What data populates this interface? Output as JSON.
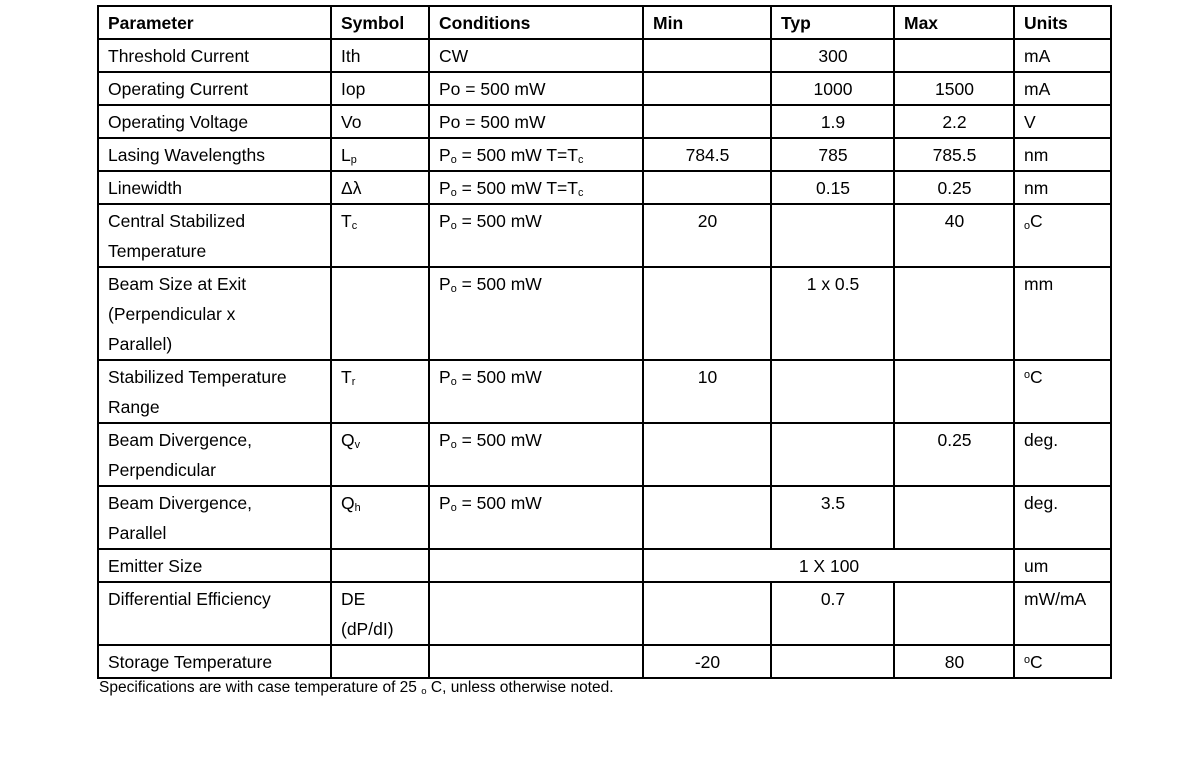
{
  "page": {
    "footnote": "Specifications are with case temperature of 25 _{o} C, unless otherwise noted."
  },
  "table": {
    "headers": [
      "Parameter",
      "Symbol",
      "Conditions",
      "Min",
      "Typ",
      "Max",
      "Units"
    ],
    "rows": [
      {
        "parameter": "Threshold Current",
        "symbol": "Ith",
        "conditions": "CW",
        "min": "",
        "typ": "300",
        "max": "",
        "units": "mA"
      },
      {
        "parameter": "Operating Current",
        "symbol": "Iop",
        "conditions": "Po = 500 mW",
        "min": "",
        "typ": "1000",
        "max": "1500",
        "units": "mA"
      },
      {
        "parameter": "Operating Voltage",
        "symbol": "Vo",
        "conditions": "Po = 500 mW",
        "min": "",
        "typ": "1.9",
        "max": "2.2",
        "units": "V"
      },
      {
        "parameter": "Lasing Wavelengths",
        "symbol": "L_{p}",
        "conditions": "P_{o} = 500 mW T=T_{c}",
        "min": "784.5",
        "typ": "785",
        "max": "785.5",
        "units": "nm"
      },
      {
        "parameter": "Linewidth",
        "symbol": "Δλ",
        "conditions": "P_{o} = 500 mW T=T_{c}",
        "min": "",
        "typ": "0.15",
        "max": "0.25",
        "units": "nm"
      },
      {
        "parameter": "Central Stabilized\nTemperature",
        "symbol": "T_{c}",
        "conditions": "P_{o} = 500 mW",
        "min": "20",
        "typ": "",
        "max": "40",
        "units": "_{o}C"
      },
      {
        "parameter": "Beam Size at Exit\n(Perpendicular x\nParallel)",
        "symbol": "",
        "conditions": "P_{o} = 500 mW",
        "min": "",
        "typ": "1 x 0.5",
        "max": "",
        "units": "mm"
      },
      {
        "parameter": "Stabilized Temperature\nRange",
        "symbol": "T_{r}",
        "conditions": "P_{o} = 500 mW",
        "min": "10",
        "typ": "",
        "max": "",
        "units": "^{o}C"
      },
      {
        "parameter": "Beam Divergence,\nPerpendicular",
        "symbol": "Q_{v}",
        "conditions": "P_{o} = 500 mW",
        "min": "",
        "typ": "",
        "max": "0.25",
        "units": "deg."
      },
      {
        "parameter": "Beam Divergence,\nParallel",
        "symbol": "Q_{h}",
        "conditions": "P_{o} = 500 mW",
        "min": "",
        "typ": "3.5",
        "max": "",
        "units": "deg."
      },
      {
        "parameter": "Emitter Size",
        "symbol": "",
        "conditions": "",
        "merge_min_typ_max": true,
        "merged_value": "1 X 100",
        "units": "um"
      },
      {
        "parameter": "Differential Efficiency",
        "symbol": "DE\n(dP/dI)",
        "conditions": "",
        "min": "",
        "typ": "0.7",
        "max": "",
        "units": "mW/mA"
      },
      {
        "parameter": "Storage Temperature",
        "symbol": "",
        "conditions": "",
        "min": "-20",
        "typ": "",
        "max": "80",
        "units": "^{o}C"
      }
    ]
  }
}
